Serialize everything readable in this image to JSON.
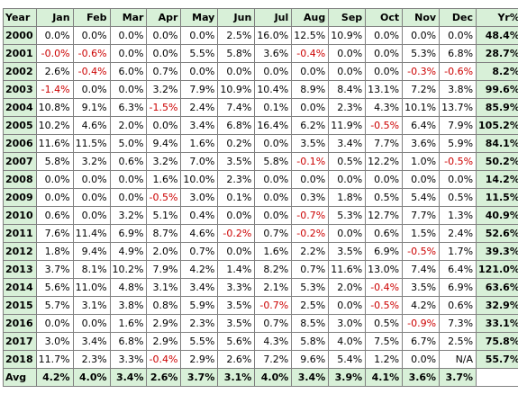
{
  "colors": {
    "header_bg": "#d8f0d8",
    "negative": "#cc0000",
    "border": "#808080"
  },
  "header": [
    "Year",
    "Jan",
    "Feb",
    "Mar",
    "Apr",
    "May",
    "Jun",
    "Jul",
    "Aug",
    "Sep",
    "Oct",
    "Nov",
    "Dec",
    "Yr%"
  ],
  "rows": [
    {
      "year": "2000",
      "months": [
        "0.0%",
        "0.0%",
        "0.0%",
        "0.0%",
        "0.0%",
        "2.5%",
        "16.0%",
        "12.5%",
        "10.9%",
        "0.0%",
        "0.0%",
        "0.0%"
      ],
      "yr": "48.4%"
    },
    {
      "year": "2001",
      "months": [
        "-0.0%",
        "-0.6%",
        "0.0%",
        "0.0%",
        "5.5%",
        "5.8%",
        "3.6%",
        "-0.4%",
        "0.0%",
        "0.0%",
        "5.3%",
        "6.8%"
      ],
      "yr": "28.7%"
    },
    {
      "year": "2002",
      "months": [
        "2.6%",
        "-0.4%",
        "6.0%",
        "0.7%",
        "0.0%",
        "0.0%",
        "0.0%",
        "0.0%",
        "0.0%",
        "0.0%",
        "-0.3%",
        "-0.6%"
      ],
      "yr": "8.2%"
    },
    {
      "year": "2003",
      "months": [
        "-1.4%",
        "0.0%",
        "0.0%",
        "3.2%",
        "7.9%",
        "10.9%",
        "10.4%",
        "8.9%",
        "8.4%",
        "13.1%",
        "7.2%",
        "3.8%"
      ],
      "yr": "99.6%"
    },
    {
      "year": "2004",
      "months": [
        "10.8%",
        "9.1%",
        "6.3%",
        "-1.5%",
        "2.4%",
        "7.4%",
        "0.1%",
        "0.0%",
        "2.3%",
        "4.3%",
        "10.1%",
        "13.7%"
      ],
      "yr": "85.9%"
    },
    {
      "year": "2005",
      "months": [
        "10.2%",
        "4.6%",
        "2.0%",
        "0.0%",
        "3.4%",
        "6.8%",
        "16.4%",
        "6.2%",
        "11.9%",
        "-0.5%",
        "6.4%",
        "7.9%"
      ],
      "yr": "105.2%"
    },
    {
      "year": "2006",
      "months": [
        "11.6%",
        "11.5%",
        "5.0%",
        "9.4%",
        "1.6%",
        "0.2%",
        "0.0%",
        "3.5%",
        "3.4%",
        "7.7%",
        "3.6%",
        "5.9%"
      ],
      "yr": "84.1%"
    },
    {
      "year": "2007",
      "months": [
        "5.8%",
        "3.2%",
        "0.6%",
        "3.2%",
        "7.0%",
        "3.5%",
        "5.8%",
        "-0.1%",
        "0.5%",
        "12.2%",
        "1.0%",
        "-0.5%"
      ],
      "yr": "50.2%"
    },
    {
      "year": "2008",
      "months": [
        "0.0%",
        "0.0%",
        "0.0%",
        "1.6%",
        "10.0%",
        "2.3%",
        "0.0%",
        "0.0%",
        "0.0%",
        "0.0%",
        "0.0%",
        "0.0%"
      ],
      "yr": "14.2%"
    },
    {
      "year": "2009",
      "months": [
        "0.0%",
        "0.0%",
        "0.0%",
        "-0.5%",
        "3.0%",
        "0.1%",
        "0.0%",
        "0.3%",
        "1.8%",
        "0.5%",
        "5.4%",
        "0.5%"
      ],
      "yr": "11.5%"
    },
    {
      "year": "2010",
      "months": [
        "0.6%",
        "0.0%",
        "3.2%",
        "5.1%",
        "0.4%",
        "0.0%",
        "0.0%",
        "-0.7%",
        "5.3%",
        "12.7%",
        "7.7%",
        "1.3%"
      ],
      "yr": "40.9%"
    },
    {
      "year": "2011",
      "months": [
        "7.6%",
        "11.4%",
        "6.9%",
        "8.7%",
        "4.6%",
        "-0.2%",
        "0.7%",
        "-0.2%",
        "0.0%",
        "0.6%",
        "1.5%",
        "2.4%"
      ],
      "yr": "52.6%"
    },
    {
      "year": "2012",
      "months": [
        "1.8%",
        "9.4%",
        "4.9%",
        "2.0%",
        "0.7%",
        "0.0%",
        "1.6%",
        "2.2%",
        "3.5%",
        "6.9%",
        "-0.5%",
        "1.7%"
      ],
      "yr": "39.3%"
    },
    {
      "year": "2013",
      "months": [
        "3.7%",
        "8.1%",
        "10.2%",
        "7.9%",
        "4.2%",
        "1.4%",
        "8.2%",
        "0.7%",
        "11.6%",
        "13.0%",
        "7.4%",
        "6.4%"
      ],
      "yr": "121.0%"
    },
    {
      "year": "2014",
      "months": [
        "5.6%",
        "11.0%",
        "4.8%",
        "3.1%",
        "3.4%",
        "3.3%",
        "2.1%",
        "5.3%",
        "2.0%",
        "-0.4%",
        "3.5%",
        "6.9%"
      ],
      "yr": "63.6%"
    },
    {
      "year": "2015",
      "months": [
        "5.7%",
        "3.1%",
        "3.8%",
        "0.8%",
        "5.9%",
        "3.5%",
        "-0.7%",
        "2.5%",
        "0.0%",
        "-0.5%",
        "4.2%",
        "0.6%"
      ],
      "yr": "32.9%"
    },
    {
      "year": "2016",
      "months": [
        "0.0%",
        "0.0%",
        "1.6%",
        "2.9%",
        "2.3%",
        "3.5%",
        "0.7%",
        "8.5%",
        "3.0%",
        "0.5%",
        "-0.9%",
        "7.3%"
      ],
      "yr": "33.1%"
    },
    {
      "year": "2017",
      "months": [
        "3.0%",
        "3.4%",
        "6.8%",
        "2.9%",
        "5.5%",
        "5.6%",
        "4.3%",
        "5.8%",
        "4.0%",
        "7.5%",
        "6.7%",
        "2.5%"
      ],
      "yr": "75.8%"
    },
    {
      "year": "2018",
      "months": [
        "11.7%",
        "2.3%",
        "3.3%",
        "-0.4%",
        "2.9%",
        "2.6%",
        "7.2%",
        "9.6%",
        "5.4%",
        "1.2%",
        "0.0%",
        "N/A"
      ],
      "yr": "55.7%"
    }
  ],
  "avg": {
    "label": "Avg",
    "months": [
      "4.2%",
      "4.0%",
      "3.4%",
      "2.6%",
      "3.7%",
      "3.1%",
      "4.0%",
      "3.4%",
      "3.9%",
      "4.1%",
      "3.6%",
      "3.7%"
    ],
    "yr": ""
  }
}
